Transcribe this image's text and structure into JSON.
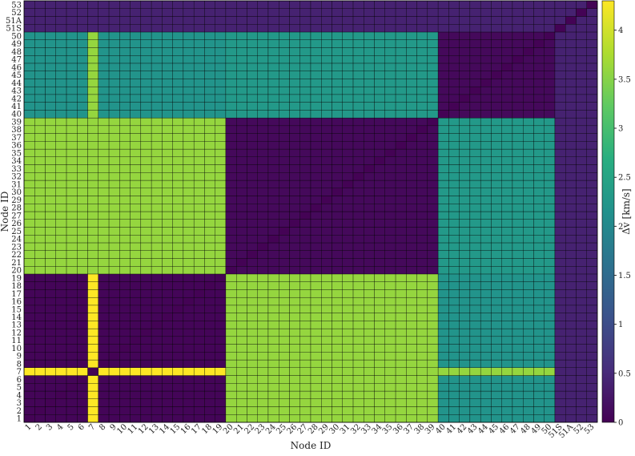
{
  "chart_data": {
    "type": "heatmap",
    "title": "",
    "xlabel": "Node ID",
    "ylabel": "Node ID",
    "colorbar_label": "Δv [km/s]",
    "colormap": "viridis",
    "zlim": [
      0,
      4.3
    ],
    "colorbar_ticks": [
      0,
      0.5,
      1,
      1.5,
      2,
      2.5,
      3,
      3.5,
      4
    ],
    "colorbar_tick_labels": [
      "0",
      "0.5",
      "1",
      "1.5",
      "2",
      "2.5",
      "3",
      "3.5",
      "4"
    ],
    "node_labels": [
      "1",
      "2",
      "3",
      "4",
      "5",
      "6",
      "7",
      "8",
      "9",
      "10",
      "11",
      "12",
      "13",
      "14",
      "15",
      "16",
      "17",
      "18",
      "19",
      "20",
      "21",
      "22",
      "23",
      "24",
      "25",
      "26",
      "27",
      "28",
      "29",
      "30",
      "31",
      "32",
      "33",
      "34",
      "35",
      "36",
      "37",
      "38",
      "39",
      "40",
      "41",
      "42",
      "43",
      "44",
      "45",
      "46",
      "47",
      "48",
      "49",
      "50",
      "51S",
      "51A",
      "52",
      "53"
    ],
    "groups": {
      "A": [
        "1",
        "2",
        "3",
        "4",
        "5",
        "6",
        "8",
        "9",
        "10",
        "11",
        "12",
        "13",
        "14",
        "15",
        "16",
        "17",
        "18",
        "19"
      ],
      "B": [
        "20",
        "21",
        "22",
        "23",
        "24",
        "25",
        "26",
        "27",
        "28",
        "29",
        "30",
        "31",
        "32",
        "33",
        "34",
        "35",
        "36",
        "37",
        "38",
        "39"
      ],
      "C": [
        "40",
        "41",
        "42",
        "43",
        "44",
        "45",
        "46",
        "47",
        "48",
        "49",
        "50"
      ],
      "D": [
        "51S",
        "51A",
        "52",
        "53"
      ],
      "hub": "7"
    },
    "approx_values": {
      "within_A": 0.05,
      "A_to_B": 3.6,
      "A_to_C": 2.2,
      "within_B": 0.1,
      "B_to_C": 2.3,
      "within_C": 0.1,
      "to_D": 0.4,
      "hub_row": 3.6,
      "hub_to_A": 4.3,
      "max": 4.3
    }
  }
}
